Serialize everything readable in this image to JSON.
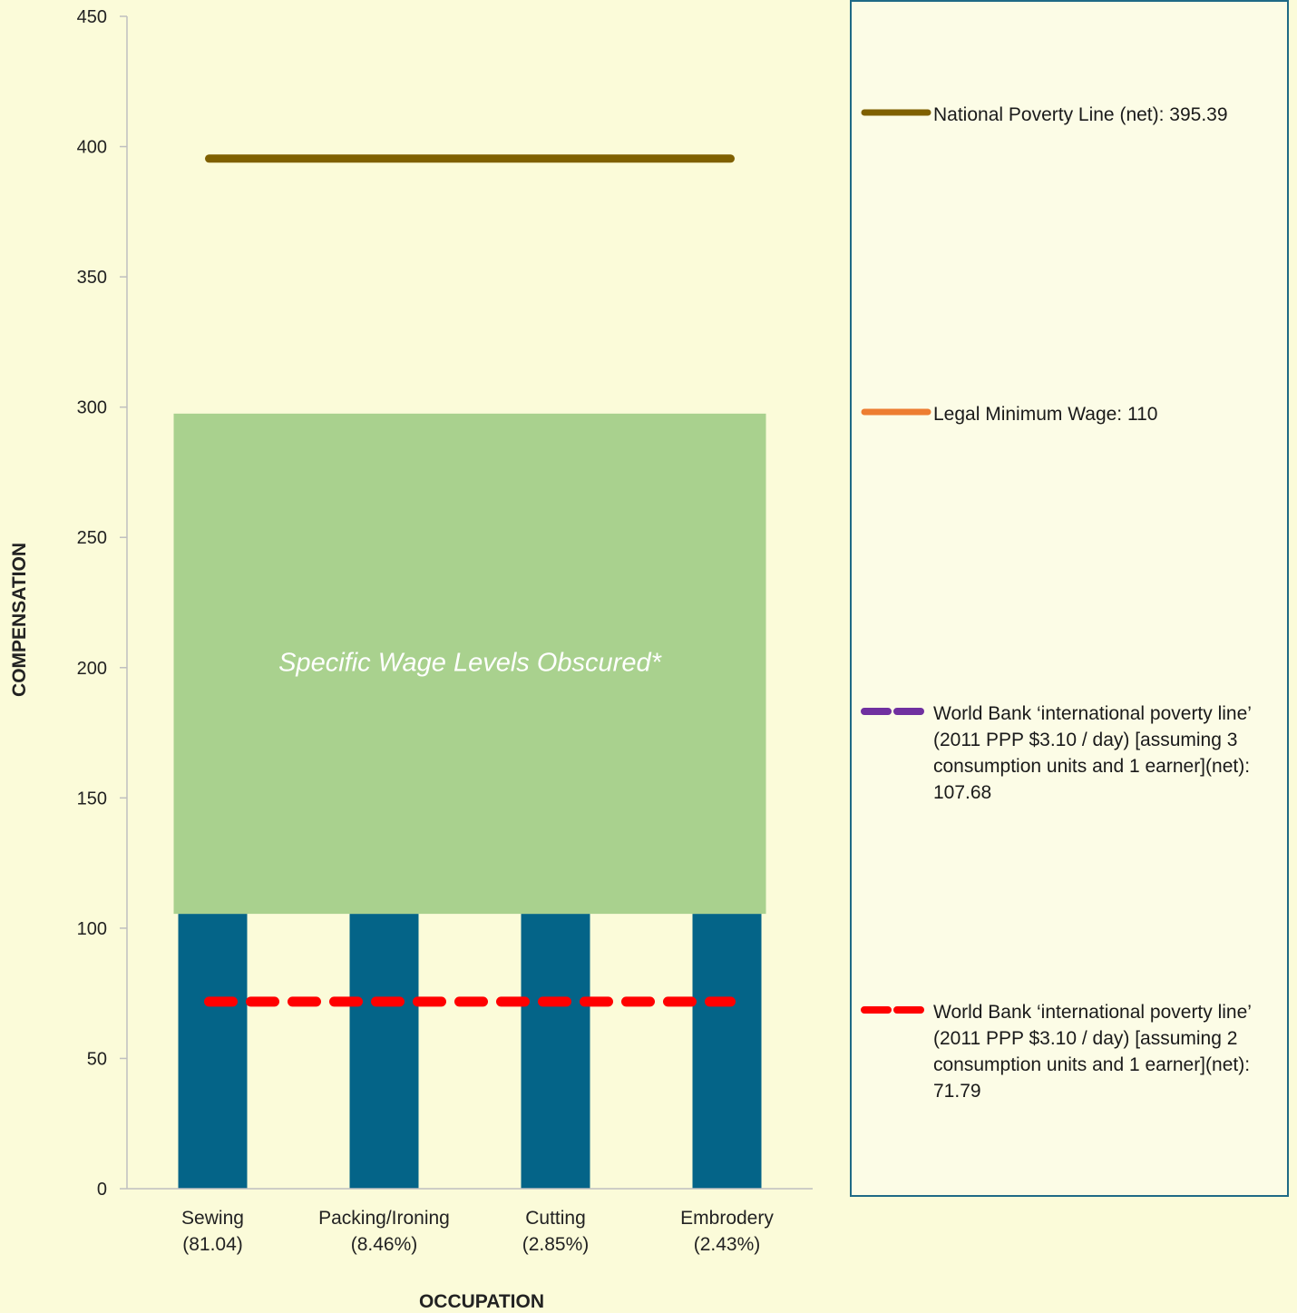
{
  "chart_data": {
    "type": "bar",
    "xlabel": "OCCUPATION",
    "ylabel": "COMPENSATION",
    "ylim": [
      0,
      450
    ],
    "yticks": [
      0,
      50,
      100,
      150,
      200,
      250,
      300,
      350,
      400,
      450
    ],
    "categories": [
      {
        "name": "Sewing",
        "share": "(81.04)"
      },
      {
        "name": "Packing/Ironing",
        "share": "(8.46%)"
      },
      {
        "name": "Cutting",
        "share": "(2.85%)"
      },
      {
        "name": "Embrodery",
        "share": "(2.43%)"
      }
    ],
    "obscured_range": {
      "label": "Specific Wage Levels Obscured*",
      "from": 105.5,
      "to": 297.5,
      "color": "#a9d18e"
    },
    "bar_color": "#046488",
    "visible_bar_top": 105.5,
    "reference_lines": [
      {
        "label": "National Poverty Line (net): 395.39",
        "value": 395.39,
        "color": "#7f6000",
        "style": "solid",
        "plotted": true
      },
      {
        "label": "Legal Minimum Wage: 110",
        "value": 110,
        "color": "#ed7d31",
        "style": "solid",
        "plotted": false
      },
      {
        "label": "World Bank ‘international poverty line’ (2011 PPP $3.10 / day) [assuming 3 consumption units and 1 earner](net): 107.68",
        "value": 107.68,
        "color": "#7030a0",
        "style": "dashed",
        "plotted": false
      },
      {
        "label": "World Bank ‘international poverty line’ (2011 PPP $3.10 / day) [assuming 2 consumption units and 1 earner](net): 71.79",
        "value": 71.79,
        "color": "#ff0000",
        "style": "dashed",
        "plotted": true
      }
    ],
    "legend_position": "right"
  }
}
